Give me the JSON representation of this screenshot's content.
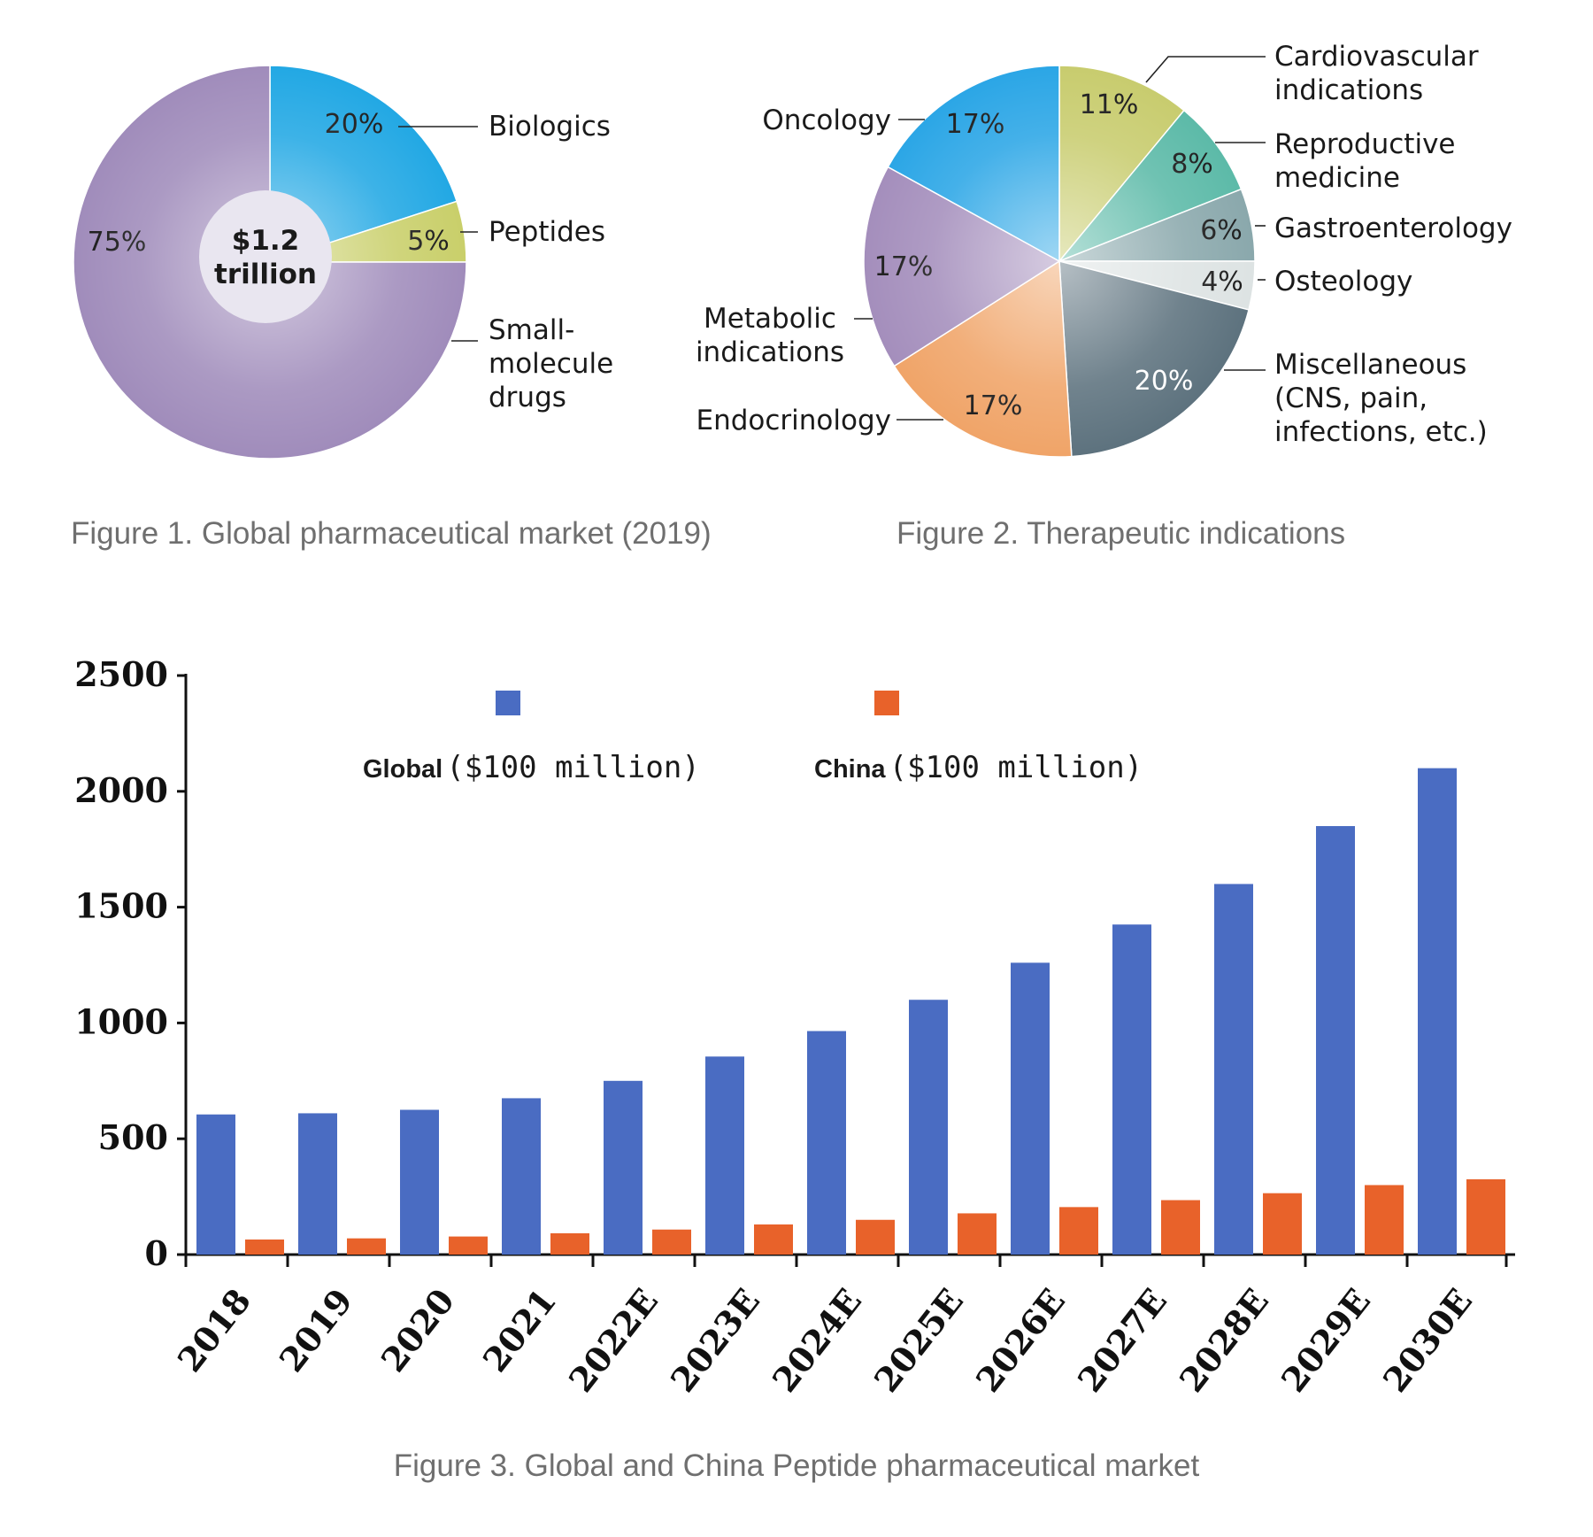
{
  "chart_data": [
    {
      "type": "pie",
      "caption": "Figure 1. Global pharmaceutical market (2019)",
      "center_label": [
        "$1.2",
        "trillion"
      ],
      "slices": [
        {
          "label": "Biologics",
          "value": 20,
          "value_label": "20%",
          "color": "#22a8e4"
        },
        {
          "label": "Peptides",
          "value": 5,
          "value_label": "5%",
          "color": "#c9cf6a"
        },
        {
          "label": "Small-molecule drugs",
          "label_lines": [
            "Small-",
            "molecule",
            "drugs"
          ],
          "value": 75,
          "value_label": "75%",
          "color": "#a08cbb"
        }
      ]
    },
    {
      "type": "pie",
      "caption": "Figure 2. Therapeutic indications",
      "slices": [
        {
          "label": "Cardiovascular indications",
          "label_lines": [
            "Cardiovascular",
            "indications"
          ],
          "value": 11,
          "value_label": "11%",
          "color": "#c8cc6e"
        },
        {
          "label": "Reproductive medicine",
          "label_lines": [
            "Reproductive",
            "medicine"
          ],
          "value": 8,
          "value_label": "8%",
          "color": "#5cbaa8"
        },
        {
          "label": "Gastroenterology",
          "label_lines": [
            "Gastroenterology"
          ],
          "value": 6,
          "value_label": "6%",
          "color": "#8aa8ac"
        },
        {
          "label": "Osteology",
          "label_lines": [
            "Osteology"
          ],
          "value": 4,
          "value_label": "4%",
          "color": "#dde3e3"
        },
        {
          "label": "Miscellaneous (CNS, pain, infections, etc.)",
          "label_lines": [
            "Miscellaneous",
            "(CNS, pain,",
            "infections, etc.)"
          ],
          "value": 20,
          "value_label": "20%",
          "color": "#5d727e"
        },
        {
          "label": "Endocrinology",
          "label_lines": [
            "Endocrinology"
          ],
          "value": 17,
          "value_label": "17%",
          "color": "#f0a468"
        },
        {
          "label": "Metabolic indications",
          "label_lines": [
            "Metabolic",
            "indications"
          ],
          "value": 17,
          "value_label": "17%",
          "color": "#a48ebc"
        },
        {
          "label": "Oncology",
          "label_lines": [
            "Oncology"
          ],
          "value": 17,
          "value_label": "17%",
          "color": "#2ba6e6"
        }
      ]
    },
    {
      "type": "bar",
      "caption": "Figure 3. Global and China Peptide pharmaceutical market",
      "categories": [
        "2018",
        "2019",
        "2020",
        "2021",
        "2022E",
        "2023E",
        "2024E",
        "2025E",
        "2026E",
        "2027E",
        "2028E",
        "2029E",
        "2030E"
      ],
      "series": [
        {
          "name_prefix": "Global",
          "name_unit": "($100 million)",
          "color": "#4a6cc2",
          "values": [
            605,
            610,
            625,
            675,
            750,
            855,
            965,
            1100,
            1260,
            1425,
            1600,
            1850,
            2100
          ]
        },
        {
          "name_prefix": "China",
          "name_unit": "($100 million)",
          "color": "#e8622a",
          "values": [
            65,
            70,
            78,
            92,
            108,
            130,
            150,
            178,
            205,
            235,
            265,
            300,
            325
          ]
        }
      ],
      "ylim": [
        0,
        2500
      ],
      "yticks": [
        "0",
        "500",
        "1000",
        "1500",
        "2000",
        "2500"
      ],
      "grid": false,
      "legend_position": "top"
    }
  ]
}
